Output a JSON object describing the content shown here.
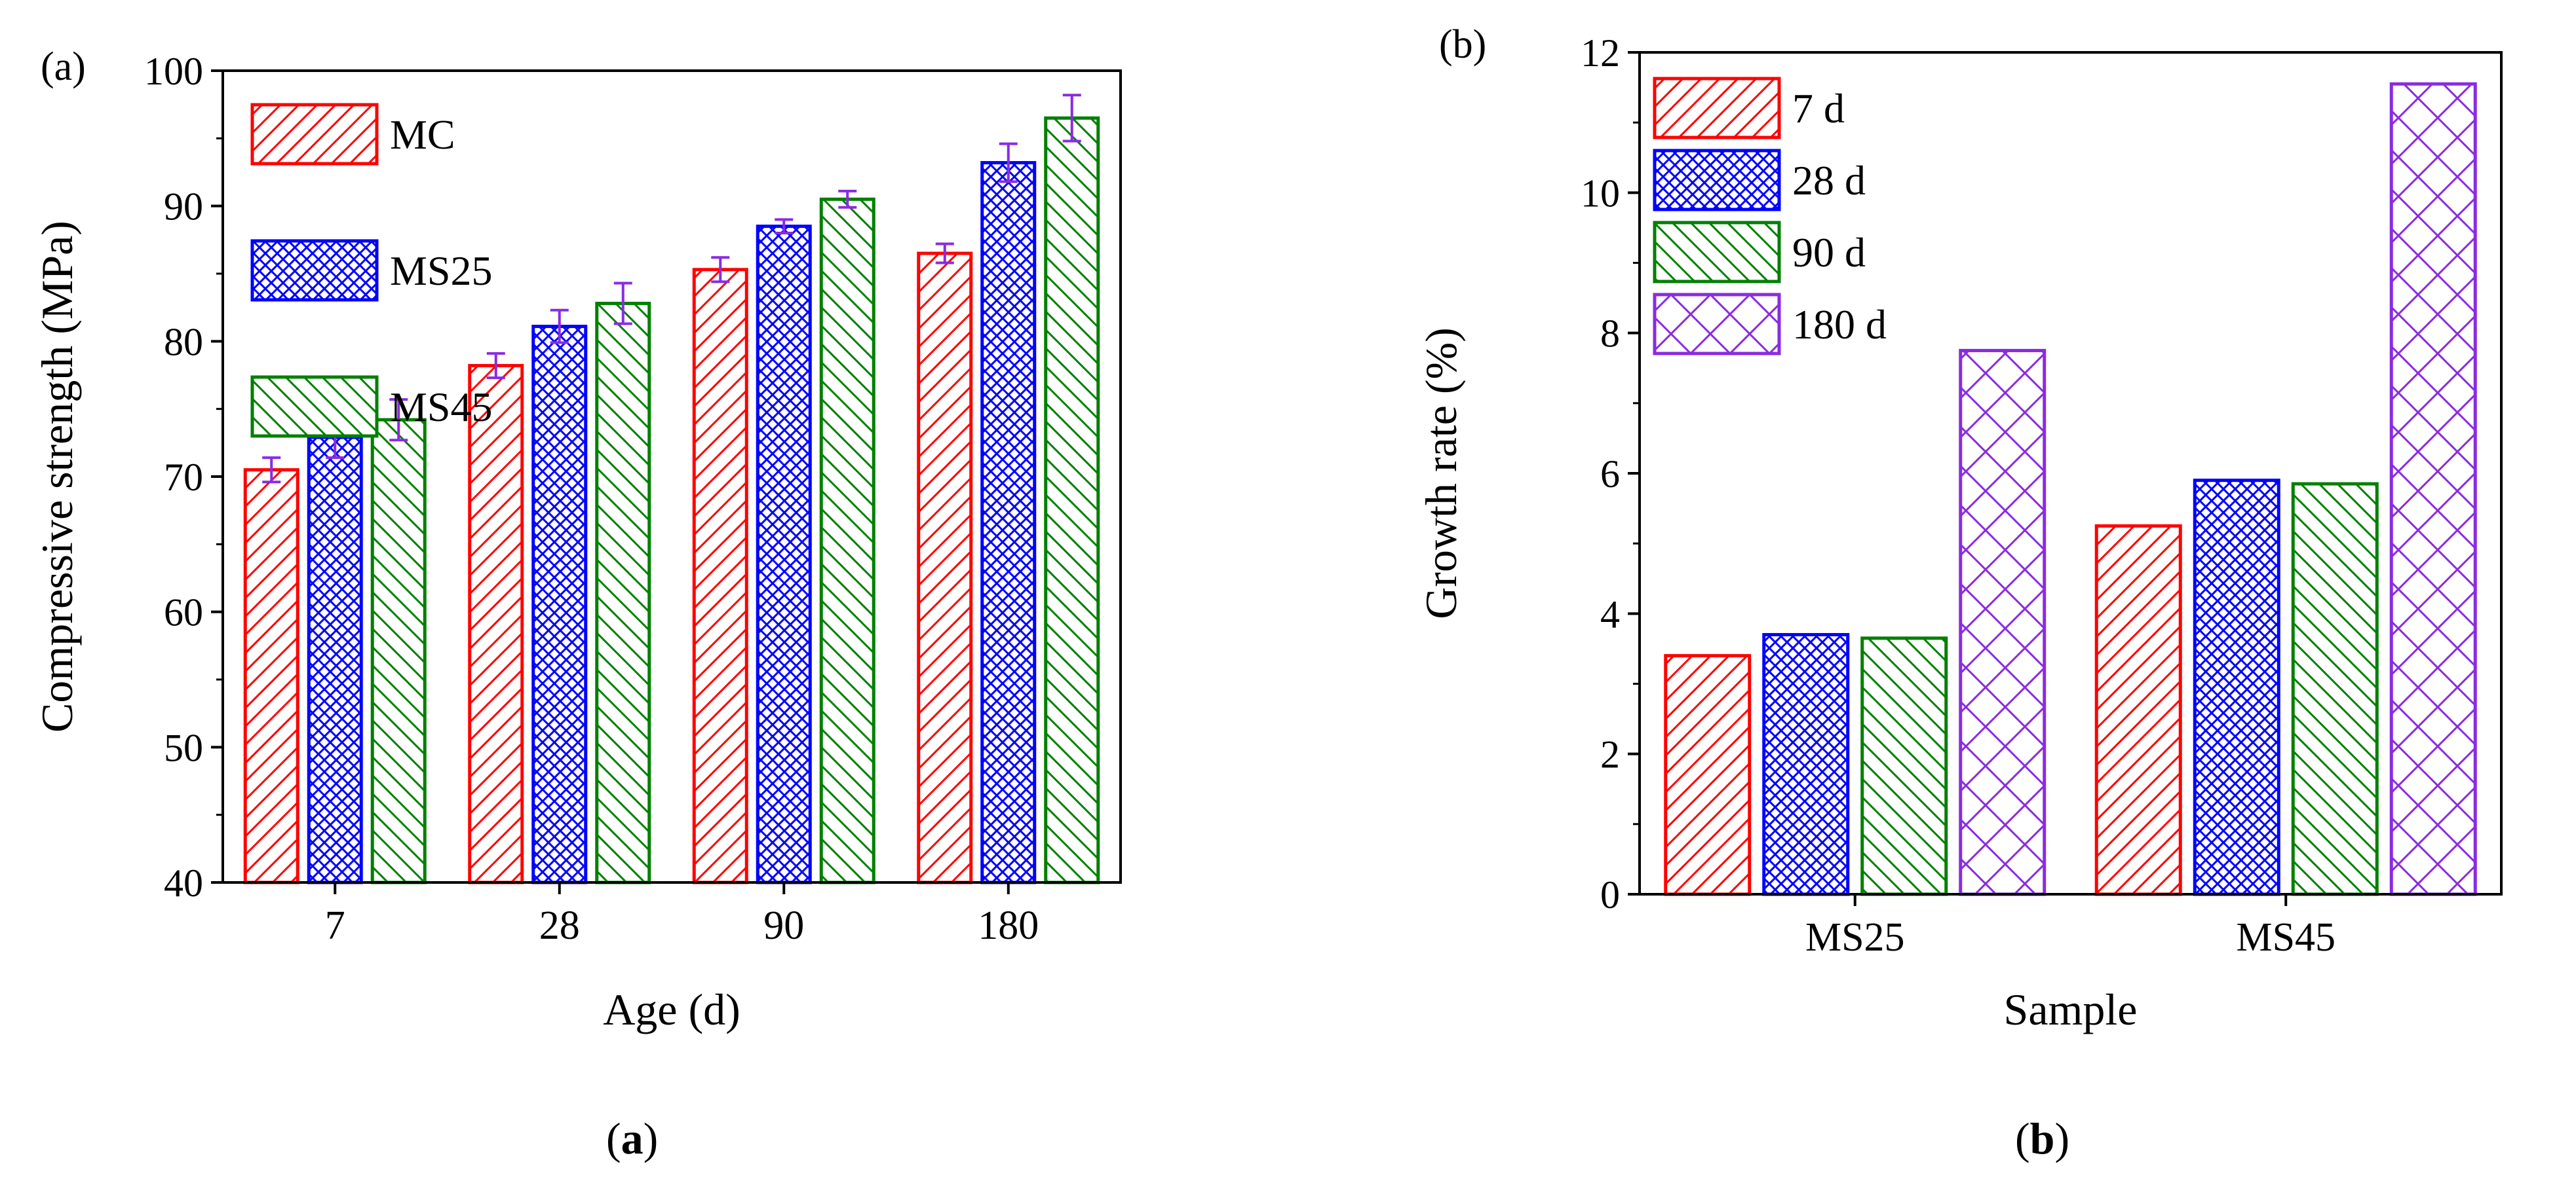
{
  "chart_data": [
    {
      "type": "bar",
      "panel_label": "(a)",
      "caption": {
        "open": "(",
        "letter": "a",
        "close": ")"
      },
      "title": "",
      "xlabel": "Age (d)",
      "ylabel": "Compressive strength (MPa)",
      "ylim": [
        40,
        100
      ],
      "yticks": [
        "40",
        "50",
        "60",
        "70",
        "80",
        "90",
        "100"
      ],
      "categories": [
        "7",
        "28",
        "90",
        "180"
      ],
      "legend_position": "top-left",
      "series": [
        {
          "name": "MC",
          "color": "#ff0000",
          "pattern": "diag-right",
          "values": [
            70.5,
            78.2,
            85.3,
            86.5
          ],
          "errors": [
            0.9,
            0.9,
            0.9,
            0.7
          ]
        },
        {
          "name": "MS25",
          "color": "#0000ff",
          "pattern": "cross-dense",
          "values": [
            72.9,
            81.1,
            88.5,
            93.2
          ],
          "errors": [
            1.5,
            1.2,
            0.5,
            1.4
          ]
        },
        {
          "name": "MS45",
          "color": "#008000",
          "pattern": "diag-left",
          "values": [
            74.2,
            82.8,
            90.5,
            96.5
          ],
          "errors": [
            1.5,
            1.5,
            0.6,
            1.7
          ]
        }
      ],
      "error_bar_color": "#8a2be2"
    },
    {
      "type": "bar",
      "panel_label": "(b)",
      "caption": {
        "open": "(",
        "letter": "b",
        "close": ")"
      },
      "title": "",
      "xlabel": "Sample",
      "ylabel": "Growth rate (%)",
      "ylim": [
        0,
        12
      ],
      "yticks": [
        "0",
        "2",
        "4",
        "6",
        "8",
        "10",
        "12"
      ],
      "categories": [
        "MS25",
        "MS45"
      ],
      "legend_position": "top-left",
      "series": [
        {
          "name": "7 d",
          "color": "#ff0000",
          "pattern": "diag-right",
          "values": [
            3.4,
            5.25
          ]
        },
        {
          "name": "28 d",
          "color": "#0000ff",
          "pattern": "cross-dense",
          "values": [
            3.7,
            5.9
          ]
        },
        {
          "name": "90 d",
          "color": "#008000",
          "pattern": "diag-left",
          "values": [
            3.65,
            5.85
          ]
        },
        {
          "name": "180 d",
          "color": "#8a2be2",
          "pattern": "cross-wide",
          "values": [
            7.75,
            11.55
          ]
        }
      ]
    }
  ]
}
